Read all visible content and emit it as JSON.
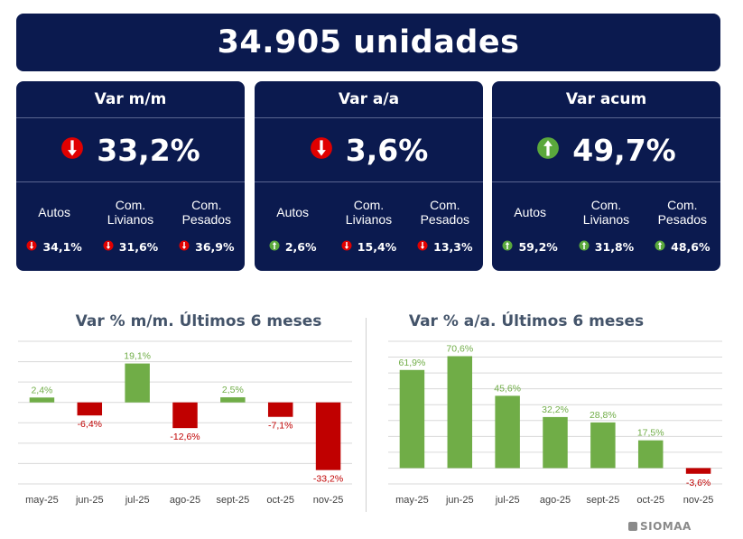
{
  "headline": "34.905 unidades",
  "cards": [
    {
      "title": "Var m/m",
      "value": "33,2%",
      "direction": "down",
      "columns": [
        {
          "label": "Autos",
          "value": "34,1%",
          "direction": "down"
        },
        {
          "label": "Com.\nLivianos",
          "value": "31,6%",
          "direction": "down"
        },
        {
          "label": "Com.\nPesados",
          "value": "36,9%",
          "direction": "down"
        }
      ]
    },
    {
      "title": "Var a/a",
      "value": "3,6%",
      "direction": "down",
      "columns": [
        {
          "label": "Autos",
          "value": "2,6%",
          "direction": "up"
        },
        {
          "label": "Com.\nLivianos",
          "value": "15,4%",
          "direction": "down"
        },
        {
          "label": "Com.\nPesados",
          "value": "13,3%",
          "direction": "down"
        }
      ]
    },
    {
      "title": "Var acum",
      "value": "49,7%",
      "direction": "up",
      "columns": [
        {
          "label": "Autos",
          "value": "59,2%",
          "direction": "up"
        },
        {
          "label": "Com.\nLivianos",
          "value": "31,8%",
          "direction": "up"
        },
        {
          "label": "Com.\nPesados",
          "value": "48,6%",
          "direction": "up"
        }
      ]
    }
  ],
  "colors": {
    "navy": "#0b1a4f",
    "up": "#70ad47",
    "down": "#c00000",
    "down_icon": "#e00000",
    "up_icon": "#5aa83c"
  },
  "icons": {
    "up": "up-arrow-icon",
    "down": "down-arrow-icon"
  },
  "chart_data": [
    {
      "type": "bar",
      "title": "Var % m/m. Últimos 6 meses",
      "categories": [
        "may-25",
        "jun-25",
        "jul-25",
        "ago-25",
        "sept-25",
        "oct-25",
        "nov-25"
      ],
      "values": [
        2.4,
        -6.4,
        19.1,
        -12.6,
        2.5,
        -7.1,
        -33.2
      ],
      "labels": [
        "2,4%",
        "-6,4%",
        "19,1%",
        "-12,6%",
        "2,5%",
        "-7,1%",
        "-33,2%"
      ],
      "ylim": [
        -40,
        30
      ],
      "grid": true
    },
    {
      "type": "bar",
      "title": "Var % a/a. Últimos 6 meses",
      "categories": [
        "may-25",
        "jun-25",
        "jul-25",
        "ago-25",
        "sept-25",
        "oct-25",
        "nov-25"
      ],
      "values": [
        61.9,
        70.6,
        45.6,
        32.2,
        28.8,
        17.5,
        -3.6
      ],
      "labels": [
        "61,9%",
        "70,6%",
        "45,6%",
        "32,2%",
        "28,8%",
        "17,5%",
        "-3,6%"
      ],
      "ylim": [
        -10,
        80
      ],
      "grid": true
    }
  ],
  "brand": "SIOMAA"
}
